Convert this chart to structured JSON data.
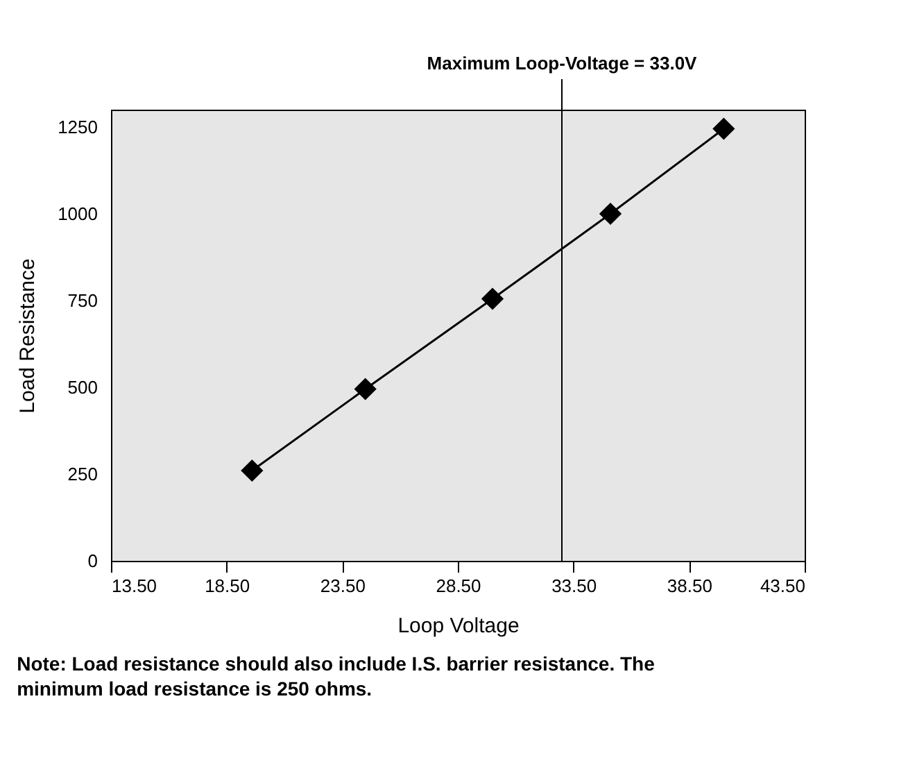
{
  "chart_data": {
    "type": "line",
    "xlabel": "Loop Voltage",
    "ylabel": "Load Resistance",
    "x": [
      19.6,
      24.5,
      30.0,
      35.1,
      40.0
    ],
    "series": [
      {
        "color": "#000000",
        "values": [
          260,
          495,
          755,
          1000,
          1245
        ]
      }
    ],
    "marker": "diamond",
    "line_style": "solid",
    "grid": false,
    "xlim": [
      13.5,
      43.5
    ],
    "xticks": [
      {
        "value": 13.5,
        "label": "13.50"
      },
      {
        "value": 18.5,
        "label": "18.50"
      },
      {
        "value": 23.5,
        "label": "23.50"
      },
      {
        "value": 28.5,
        "label": "28.50"
      },
      {
        "value": 33.5,
        "label": "33.50"
      },
      {
        "value": 38.5,
        "label": "38.50"
      },
      {
        "value": 43.5,
        "label": "43.50"
      }
    ],
    "ylim": [
      0,
      1300
    ],
    "yticks": [
      0,
      250,
      500,
      750,
      1000,
      1250
    ],
    "ref_lines": [
      {
        "axis": "x",
        "value": 33.0,
        "label": "Maximum Loop-Voltage = 33.0V",
        "color": "#000000"
      }
    ],
    "annotations": [
      "Note: Load resistance should also include I.S. barrier resistance. The minimum load resistance is 250 ohms."
    ]
  }
}
